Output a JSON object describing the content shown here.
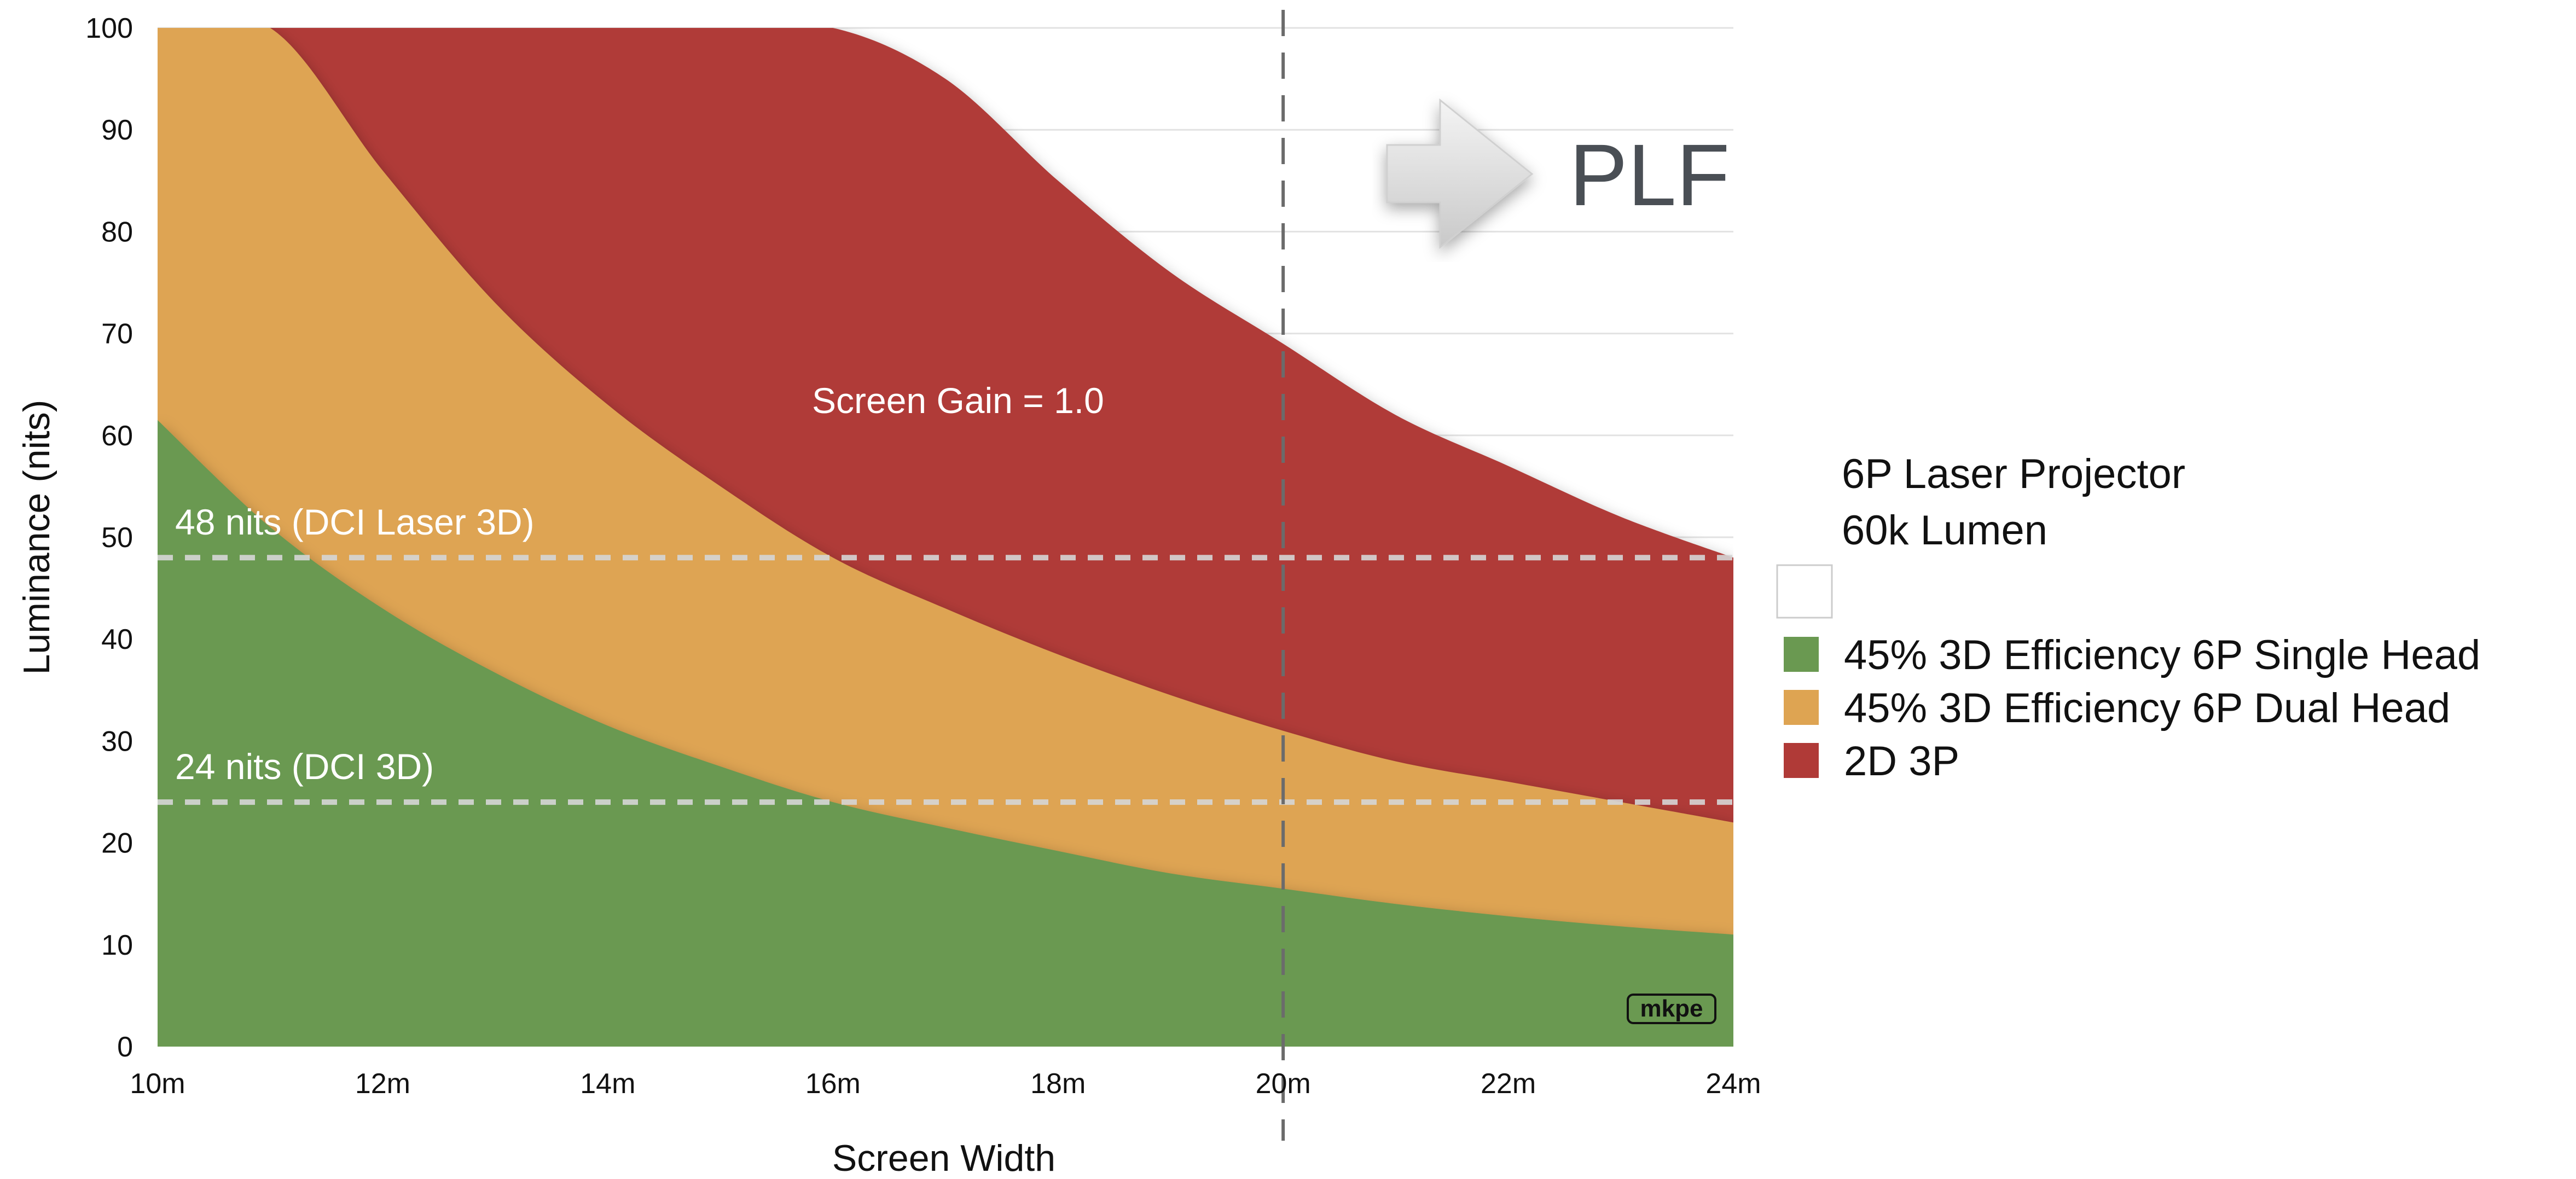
{
  "chart_data": {
    "type": "area",
    "xlabel": "Screen Width",
    "ylabel": "Luminance (nits)",
    "xlim": [
      10,
      24
    ],
    "ylim": [
      0,
      100
    ],
    "x_ticks": [
      10,
      12,
      14,
      16,
      18,
      20,
      22,
      24
    ],
    "x_tick_labels": [
      "10m",
      "12m",
      "14m",
      "16m",
      "18m",
      "20m",
      "22m",
      "24m"
    ],
    "y_ticks": [
      0,
      10,
      20,
      30,
      40,
      50,
      60,
      70,
      80,
      90,
      100
    ],
    "y_tick_labels": [
      "0",
      "10",
      "20",
      "30",
      "40",
      "50",
      "60",
      "70",
      "80",
      "90",
      "100"
    ],
    "grid": "horizontal",
    "legend_position": "right",
    "legend_title_lines": [
      "6P Laser Projector",
      "60k Lumen"
    ],
    "x": [
      10,
      11,
      12,
      13,
      14,
      15,
      16,
      17,
      18,
      19,
      20,
      21,
      22,
      23,
      24
    ],
    "series": [
      {
        "name": "2D 3P",
        "color": "#b03a37",
        "values": [
          100,
          100,
          100,
          100,
          100,
          100,
          100,
          95,
          85,
          76,
          69,
          62,
          57,
          52,
          48
        ]
      },
      {
        "name": "45% 3D Efficiency 6P Dual Head",
        "color": "#dea452",
        "values": [
          100,
          100,
          86,
          73,
          63,
          55,
          48,
          43,
          38.5,
          34.5,
          31,
          28,
          26,
          24,
          22
        ]
      },
      {
        "name": "45% 3D Efficiency 6P Single Head",
        "color": "#6a9951",
        "values": [
          61.5,
          51,
          43,
          36.7,
          31.5,
          27.5,
          24,
          21.5,
          19.2,
          17,
          15.5,
          14,
          12.8,
          11.8,
          11
        ]
      }
    ],
    "reference_lines": [
      {
        "y": 48,
        "label": "48 nits (DCI Laser 3D)"
      },
      {
        "y": 24,
        "label": "24 nits (DCI 3D)"
      }
    ],
    "vertical_marker": {
      "x": 20,
      "label": "PLF"
    },
    "annotations": [
      "Screen Gain = 1.0"
    ],
    "watermark": "mkpe"
  }
}
